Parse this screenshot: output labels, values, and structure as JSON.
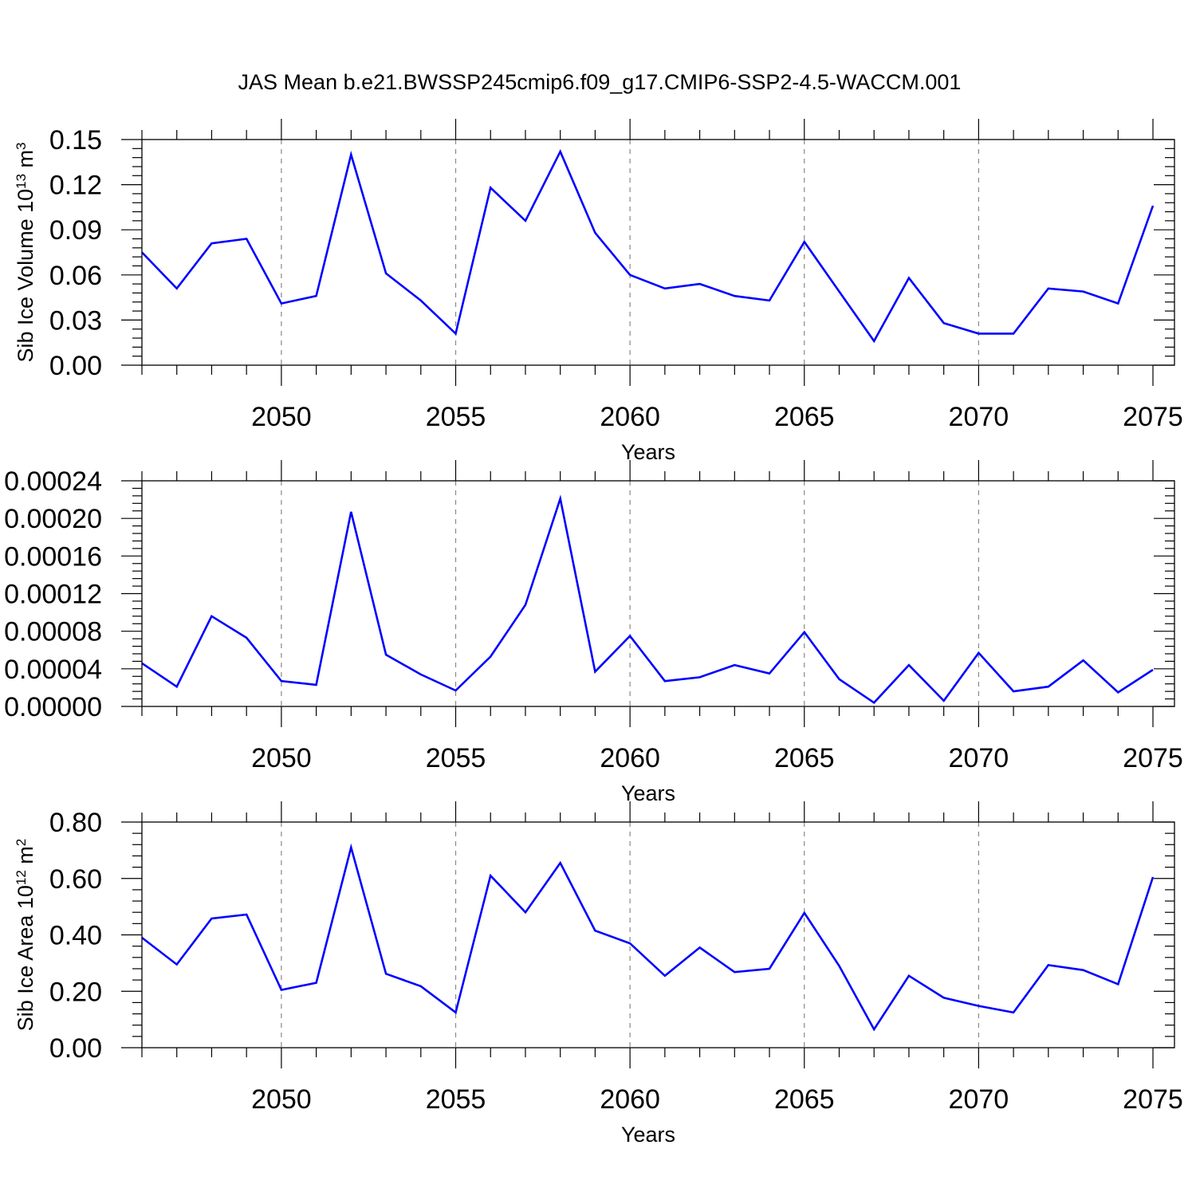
{
  "figure": {
    "title": "JAS Mean b.e21.BWSSP245cmip6.f09_g17.CMIP6-SSP2-4.5-WACCM.001"
  },
  "chart_data": [
    {
      "type": "line",
      "ylabel": "Sib Ice Volume 10",
      "ylabel_sup": "13",
      "ylabel_unit": " m",
      "ylabel_unit_sup": "3",
      "xlabel": "Years",
      "xlim": [
        2046,
        2075
      ],
      "ylim": [
        0,
        0.15
      ],
      "yticks": [
        "0.00",
        "0.03",
        "0.06",
        "0.09",
        "0.12",
        "0.15"
      ],
      "yticks_values": [
        0,
        0.03,
        0.06,
        0.09,
        0.12,
        0.15
      ],
      "xticks": [
        "2050",
        "2055",
        "2060",
        "2065",
        "2070",
        "2075"
      ],
      "xticks_values": [
        2050,
        2055,
        2060,
        2065,
        2070,
        2075
      ],
      "grid": "vertical dashed at major x ticks",
      "color": "#0000ff",
      "x": [
        2046,
        2047,
        2048,
        2049,
        2050,
        2051,
        2052,
        2053,
        2054,
        2055,
        2056,
        2057,
        2058,
        2059,
        2060,
        2061,
        2062,
        2063,
        2064,
        2065,
        2066,
        2067,
        2068,
        2069,
        2070,
        2071,
        2072,
        2073,
        2074,
        2075
      ],
      "values": [
        0.075,
        0.051,
        0.081,
        0.084,
        0.041,
        0.046,
        0.14,
        0.061,
        0.043,
        0.021,
        0.118,
        0.096,
        0.142,
        0.088,
        0.06,
        0.051,
        0.054,
        0.046,
        0.043,
        0.082,
        0.049,
        0.016,
        0.058,
        0.028,
        0.021,
        0.021,
        0.051,
        0.049,
        0.041,
        0.106
      ]
    },
    {
      "type": "line",
      "ylabel": "",
      "xlabel": "Years",
      "xlim": [
        2046,
        2075
      ],
      "ylim": [
        0,
        0.00024
      ],
      "yticks": [
        "0.00000",
        "0.00004",
        "0.00008",
        "0.00012",
        "0.00016",
        "0.00020",
        "0.00024"
      ],
      "yticks_values": [
        0,
        4e-05,
        8e-05,
        0.00012,
        0.00016,
        0.0002,
        0.00024
      ],
      "xticks": [
        "2050",
        "2055",
        "2060",
        "2065",
        "2070",
        "2075"
      ],
      "xticks_values": [
        2050,
        2055,
        2060,
        2065,
        2070,
        2075
      ],
      "grid": "vertical dashed at major x ticks",
      "color": "#0000ff",
      "x": [
        2046,
        2047,
        2048,
        2049,
        2050,
        2051,
        2052,
        2053,
        2054,
        2055,
        2056,
        2057,
        2058,
        2059,
        2060,
        2061,
        2062,
        2063,
        2064,
        2065,
        2066,
        2067,
        2068,
        2069,
        2070,
        2071,
        2072,
        2073,
        2074,
        2075
      ],
      "values": [
        4.6e-05,
        2.1e-05,
        9.6e-05,
        7.3e-05,
        2.7e-05,
        2.3e-05,
        0.000207,
        5.5e-05,
        3.4e-05,
        1.7e-05,
        5.3e-05,
        0.000108,
        0.000221,
        3.7e-05,
        7.5e-05,
        2.7e-05,
        3.1e-05,
        4.4e-05,
        3.5e-05,
        7.9e-05,
        2.9e-05,
        4e-06,
        4.4e-05,
        6e-06,
        5.7e-05,
        1.6e-05,
        2.1e-05,
        4.9e-05,
        1.5e-05,
        3.9e-05
      ]
    },
    {
      "type": "line",
      "ylabel": "Sib Ice Area 10",
      "ylabel_sup": "12",
      "ylabel_unit": " m",
      "ylabel_unit_sup": "2",
      "xlabel": "Years",
      "xlim": [
        2046,
        2075
      ],
      "ylim": [
        0,
        0.8
      ],
      "yticks": [
        "0.00",
        "0.20",
        "0.40",
        "0.60",
        "0.80"
      ],
      "yticks_values": [
        0,
        0.2,
        0.4,
        0.6,
        0.8
      ],
      "xticks": [
        "2050",
        "2055",
        "2060",
        "2065",
        "2070",
        "2075"
      ],
      "xticks_values": [
        2050,
        2055,
        2060,
        2065,
        2070,
        2075
      ],
      "grid": "vertical dashed at major x ticks",
      "color": "#0000ff",
      "x": [
        2046,
        2047,
        2048,
        2049,
        2050,
        2051,
        2052,
        2053,
        2054,
        2055,
        2056,
        2057,
        2058,
        2059,
        2060,
        2061,
        2062,
        2063,
        2064,
        2065,
        2066,
        2067,
        2068,
        2069,
        2070,
        2071,
        2072,
        2073,
        2074,
        2075
      ],
      "values": [
        0.39,
        0.295,
        0.458,
        0.472,
        0.205,
        0.23,
        0.71,
        0.262,
        0.218,
        0.125,
        0.61,
        0.48,
        0.655,
        0.415,
        0.37,
        0.255,
        0.355,
        0.268,
        0.28,
        0.478,
        0.29,
        0.065,
        0.255,
        0.177,
        0.148,
        0.125,
        0.293,
        0.275,
        0.225,
        0.605
      ]
    }
  ]
}
